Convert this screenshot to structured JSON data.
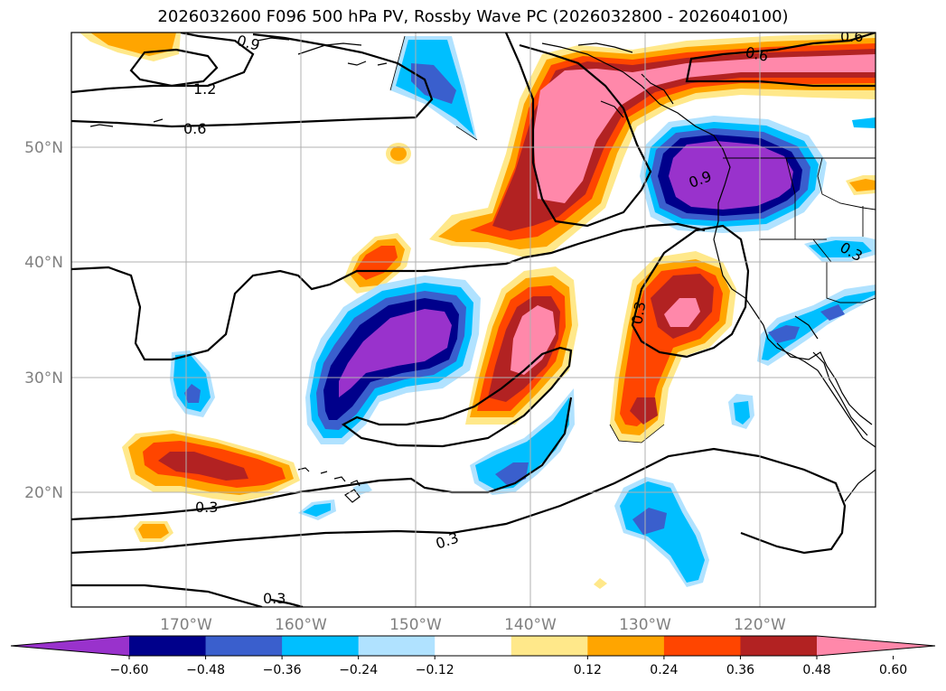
{
  "title": "2026032600 F096 500 hPa PV, Rossby Wave PC (2026032800 - 2026040100)",
  "map": {
    "lon_labels": [
      "170°W",
      "160°W",
      "150°W",
      "140°W",
      "130°W",
      "120°W"
    ],
    "lat_labels": [
      "50°N",
      "40°N",
      "30°N",
      "20°N"
    ],
    "lon_range": [
      -180,
      -110
    ],
    "lat_range": [
      10,
      60
    ]
  },
  "contour_labels": [
    "0.9",
    "1.2",
    "0.6",
    "0.6",
    "0.6",
    "0.9",
    "0.3",
    "0.3",
    "0.3",
    "0.3",
    "0.3"
  ],
  "colorbar": {
    "ticks": [
      "−0.60",
      "−0.48",
      "−0.36",
      "−0.24",
      "−0.12",
      "0.12",
      "0.24",
      "0.36",
      "0.48",
      "0.60"
    ],
    "colors": [
      "#9932cc",
      "#00008b",
      "#3a5fcd",
      "#00bfff",
      "#b0e2ff",
      "#ffffff",
      "#ffe88a",
      "#ffa500",
      "#ff4500",
      "#b22222",
      "#ff88aa"
    ]
  }
}
